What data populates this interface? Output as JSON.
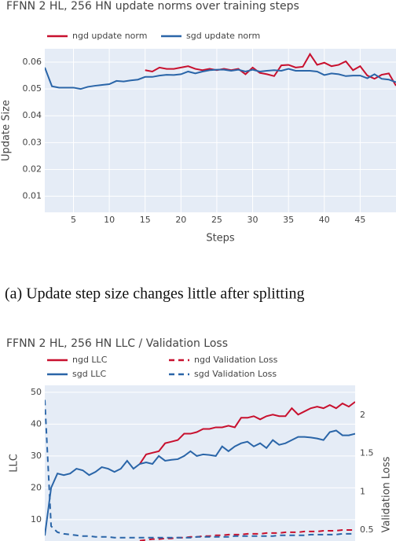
{
  "chart_data": [
    {
      "type": "line",
      "title": "FFNN 2 HL, 256 HN update norms over training steps",
      "x_label": "Steps",
      "y_label": "Update Size",
      "x": [
        1,
        2,
        3,
        4,
        5,
        6,
        7,
        8,
        9,
        10,
        11,
        12,
        13,
        14,
        15,
        16,
        17,
        18,
        19,
        20,
        21,
        22,
        23,
        24,
        25,
        26,
        27,
        28,
        29,
        30,
        31,
        32,
        33,
        34,
        35,
        36,
        37,
        38,
        39,
        40,
        41,
        42,
        43,
        44,
        45,
        46,
        47,
        48,
        49,
        50
      ],
      "xlim": [
        1,
        50
      ],
      "xticks": [
        5,
        10,
        15,
        20,
        25,
        30,
        35,
        40,
        45
      ],
      "ylim": [
        0.004,
        0.065
      ],
      "yticks": [
        0.01,
        0.02,
        0.03,
        0.04,
        0.05,
        0.06
      ],
      "grid": true,
      "legend": "top-left",
      "series": [
        {
          "name": "ngd update norm",
          "color": "#c8102e",
          "values": [
            null,
            null,
            null,
            null,
            null,
            null,
            null,
            null,
            null,
            null,
            null,
            null,
            null,
            null,
            0.057,
            0.0565,
            0.058,
            0.0575,
            0.0575,
            0.058,
            0.0585,
            0.0575,
            0.057,
            0.0575,
            0.057,
            0.0575,
            0.057,
            0.0575,
            0.0555,
            0.058,
            0.056,
            0.0555,
            0.0548,
            0.0588,
            0.059,
            0.058,
            0.0583,
            0.063,
            0.059,
            0.0598,
            0.0585,
            0.059,
            0.0603,
            0.057,
            0.0585,
            0.055,
            0.0538,
            0.0553,
            0.0558,
            0.0512
          ]
        },
        {
          "name": "sgd update norm",
          "color": "#2a65a8",
          "values": [
            0.058,
            0.051,
            0.0505,
            0.0505,
            0.0505,
            0.05,
            0.0508,
            0.0512,
            0.0515,
            0.0518,
            0.053,
            0.0528,
            0.0532,
            0.0535,
            0.0545,
            0.0545,
            0.055,
            0.0553,
            0.0552,
            0.0555,
            0.0565,
            0.0558,
            0.0565,
            0.057,
            0.0572,
            0.0572,
            0.0568,
            0.0572,
            0.0565,
            0.0572,
            0.0565,
            0.0568,
            0.057,
            0.0568,
            0.0575,
            0.0568,
            0.0568,
            0.0568,
            0.0565,
            0.0552,
            0.0558,
            0.0555,
            0.0548,
            0.055,
            0.055,
            0.054,
            0.0555,
            0.0538,
            0.0535,
            0.0525
          ]
        }
      ]
    },
    {
      "type": "line",
      "title": "FFNN 2 HL, 256 HN LLC / Validation Loss",
      "y_label": "LLC",
      "y2_label": "Validation Loss",
      "x": [
        1,
        2,
        3,
        4,
        5,
        6,
        7,
        8,
        9,
        10,
        11,
        12,
        13,
        14,
        15,
        16,
        17,
        18,
        19,
        20,
        21,
        22,
        23,
        24,
        25,
        26,
        27,
        28,
        29,
        30,
        31,
        32,
        33,
        34,
        35,
        36,
        37,
        38,
        39,
        40,
        41,
        42,
        43,
        44,
        45,
        46,
        47,
        48,
        49,
        50
      ],
      "xlim": [
        1,
        50
      ],
      "ylim": [
        3.3,
        52.2
      ],
      "yticks": [
        10,
        20,
        30,
        40,
        50
      ],
      "y2lim": [
        0.356,
        2.39
      ],
      "y2ticks": [
        0.5,
        1,
        1.5,
        2
      ],
      "grid": true,
      "legend": "top-left",
      "series": [
        {
          "name": "ngd LLC",
          "color": "#c8102e",
          "values": [
            null,
            null,
            null,
            null,
            null,
            null,
            null,
            null,
            null,
            null,
            null,
            null,
            null,
            null,
            null,
            27.5,
            30.5,
            31,
            31.5,
            34,
            34.5,
            35,
            37,
            37,
            37.5,
            38.5,
            38.5,
            39,
            39,
            39.5,
            39,
            42,
            42,
            42.5,
            41.5,
            42.5,
            43,
            42.5,
            42.5,
            45,
            43,
            44,
            45,
            45.5,
            45,
            46,
            45,
            46.5,
            45.5,
            47
          ]
        },
        {
          "name": "sgd LLC",
          "color": "#2a65a8",
          "values": [
            5,
            20,
            24.5,
            24,
            24.5,
            26,
            25.5,
            24,
            25,
            26.5,
            26,
            25,
            26,
            28.5,
            26,
            27.5,
            28,
            27.5,
            30,
            28.5,
            28.8,
            29,
            30,
            31.5,
            30,
            30.5,
            30.3,
            30,
            33,
            31.5,
            33,
            34,
            34.5,
            33,
            34,
            32.5,
            35,
            33.5,
            34,
            35,
            36,
            36,
            35.8,
            35.5,
            35,
            37.5,
            38,
            36.5,
            36.5,
            37
          ]
        },
        {
          "name": "ngd Validation Loss",
          "color": "#c8102e",
          "dash": true,
          "axis": "y2",
          "values": [
            null,
            null,
            null,
            null,
            null,
            null,
            null,
            null,
            null,
            null,
            null,
            null,
            null,
            null,
            null,
            0.36,
            0.37,
            0.38,
            0.38,
            0.39,
            0.39,
            0.4,
            0.4,
            0.41,
            0.41,
            0.42,
            0.42,
            0.43,
            0.43,
            0.44,
            0.44,
            0.44,
            0.45,
            0.45,
            0.45,
            0.46,
            0.46,
            0.46,
            0.47,
            0.47,
            0.47,
            0.48,
            0.48,
            0.48,
            0.49,
            0.49,
            0.49,
            0.5,
            0.5,
            0.5
          ]
        },
        {
          "name": "sgd Validation Loss",
          "color": "#2a65a8",
          "dash": true,
          "axis": "y2",
          "values": [
            2.2,
            0.55,
            0.47,
            0.45,
            0.44,
            0.43,
            0.42,
            0.42,
            0.41,
            0.41,
            0.41,
            0.4,
            0.4,
            0.4,
            0.4,
            0.4,
            0.4,
            0.4,
            0.4,
            0.4,
            0.4,
            0.4,
            0.4,
            0.4,
            0.41,
            0.41,
            0.41,
            0.41,
            0.41,
            0.41,
            0.42,
            0.42,
            0.42,
            0.42,
            0.42,
            0.42,
            0.42,
            0.43,
            0.43,
            0.43,
            0.43,
            0.43,
            0.44,
            0.44,
            0.44,
            0.44,
            0.44,
            0.45,
            0.45,
            0.45
          ]
        }
      ]
    }
  ],
  "caption": "(a) Update step size changes little after splitting"
}
